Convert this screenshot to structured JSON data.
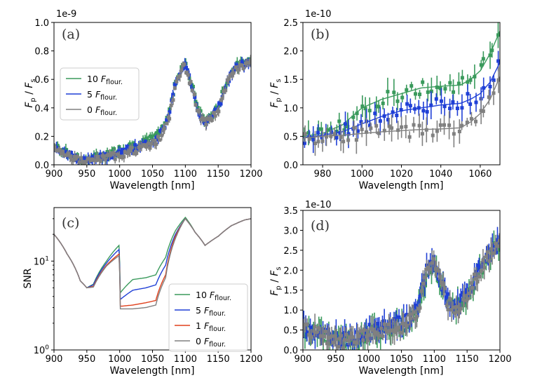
{
  "chart_data": [
    {
      "panel": "(a)",
      "type": "scatter",
      "xlabel": "Wavelength [nm]",
      "ylabel": "F_p / F_s",
      "y_multiplier": "1e-9",
      "xlim": [
        900,
        1200
      ],
      "ylim": [
        0,
        1.0
      ],
      "xticks": [
        "900",
        "950",
        "1000",
        "1050",
        "1100",
        "1150",
        "1200"
      ],
      "yticks": [
        "0.0",
        "0.2",
        "0.4",
        "0.6",
        "0.8",
        "1.0"
      ],
      "legend_position": "center-left",
      "series": [
        {
          "name": "10 F_flour.",
          "color": "#3a9a5c",
          "x": [
            900,
            920,
            940,
            950,
            960,
            980,
            1000,
            1020,
            1040,
            1060,
            1075,
            1085,
            1095,
            1100,
            1110,
            1120,
            1130,
            1140,
            1150,
            1160,
            1170,
            1180,
            1190,
            1200
          ],
          "y": [
            0.13,
            0.08,
            0.04,
            0.03,
            0.05,
            0.07,
            0.11,
            0.14,
            0.16,
            0.22,
            0.36,
            0.58,
            0.7,
            0.71,
            0.56,
            0.38,
            0.31,
            0.35,
            0.4,
            0.55,
            0.65,
            0.7,
            0.72,
            0.74
          ]
        },
        {
          "name": "5 F_flour.",
          "color": "#1f3fd6",
          "x": [
            900,
            920,
            940,
            950,
            960,
            980,
            1000,
            1020,
            1040,
            1060,
            1075,
            1085,
            1095,
            1100,
            1110,
            1120,
            1130,
            1140,
            1150,
            1160,
            1170,
            1180,
            1190,
            1200
          ],
          "y": [
            0.13,
            0.08,
            0.04,
            0.03,
            0.04,
            0.06,
            0.09,
            0.12,
            0.14,
            0.2,
            0.34,
            0.56,
            0.69,
            0.7,
            0.55,
            0.37,
            0.3,
            0.34,
            0.39,
            0.54,
            0.64,
            0.69,
            0.71,
            0.73
          ]
        },
        {
          "name": "0 F_flour.",
          "color": "#808080",
          "x": [
            900,
            920,
            940,
            950,
            960,
            980,
            1000,
            1020,
            1040,
            1060,
            1075,
            1085,
            1095,
            1100,
            1110,
            1120,
            1130,
            1140,
            1150,
            1160,
            1170,
            1180,
            1190,
            1200
          ],
          "y": [
            0.12,
            0.07,
            0.03,
            0.02,
            0.03,
            0.05,
            0.07,
            0.1,
            0.12,
            0.18,
            0.32,
            0.55,
            0.68,
            0.69,
            0.54,
            0.36,
            0.29,
            0.33,
            0.38,
            0.53,
            0.63,
            0.68,
            0.7,
            0.72
          ]
        }
      ]
    },
    {
      "panel": "(b)",
      "type": "scatter",
      "xlabel": "Wavelength [nm]",
      "ylabel": "F_p / F_s",
      "y_multiplier": "1e-10",
      "xlim": [
        970,
        1070
      ],
      "ylim": [
        0,
        2.5
      ],
      "xticks": [
        "980",
        "1000",
        "1020",
        "1040",
        "1060"
      ],
      "yticks": [
        "0.0",
        "0.5",
        "1.0",
        "1.5",
        "2.0",
        "2.5"
      ],
      "series": [
        {
          "name": "10 F_flour.",
          "color": "#3a9a5c",
          "x": [
            970,
            980,
            990,
            1000,
            1010,
            1020,
            1030,
            1040,
            1050,
            1055,
            1060,
            1065,
            1070
          ],
          "y": [
            0.5,
            0.55,
            0.7,
            1.0,
            1.15,
            1.25,
            1.35,
            1.38,
            1.4,
            1.5,
            1.65,
            1.95,
            2.35
          ]
        },
        {
          "name": "5 F_flour.",
          "color": "#1f3fd6",
          "x": [
            970,
            980,
            990,
            1000,
            1010,
            1020,
            1030,
            1040,
            1050,
            1055,
            1060,
            1065,
            1070
          ],
          "y": [
            0.48,
            0.52,
            0.58,
            0.72,
            0.85,
            0.95,
            1.0,
            1.05,
            1.08,
            1.15,
            1.25,
            1.45,
            1.8
          ]
        },
        {
          "name": "0 F_flour.",
          "color": "#808080",
          "x": [
            970,
            980,
            990,
            1000,
            1010,
            1020,
            1030,
            1040,
            1050,
            1055,
            1060,
            1065,
            1070
          ],
          "y": [
            0.47,
            0.5,
            0.52,
            0.55,
            0.58,
            0.6,
            0.62,
            0.63,
            0.65,
            0.75,
            0.9,
            1.15,
            1.55
          ]
        }
      ]
    },
    {
      "panel": "(c)",
      "type": "line",
      "xlabel": "Wavelength [nm]",
      "ylabel": "SNR",
      "yscale": "log",
      "xlim": [
        900,
        1200
      ],
      "ylim": [
        1,
        40
      ],
      "xticks": [
        "900",
        "950",
        "1000",
        "1050",
        "1100",
        "1150",
        "1200"
      ],
      "yticks": [
        "10^0",
        "10^1"
      ],
      "legend_position": "lower-right",
      "series": [
        {
          "name": "10 F_flour.",
          "color": "#3a9a5c",
          "x": [
            900,
            920,
            940,
            950,
            960,
            980,
            999,
            1001,
            1020,
            1040,
            1055,
            1070,
            1085,
            1100,
            1115,
            1130,
            1150,
            1170,
            1190,
            1200
          ],
          "y": [
            20,
            12,
            6,
            5,
            5.5,
            10,
            15,
            4.4,
            6.2,
            6.5,
            7,
            11,
            22,
            31,
            21,
            15,
            19,
            25,
            29,
            30
          ]
        },
        {
          "name": "5 F_flour.",
          "color": "#1f3fd6",
          "x": [
            900,
            920,
            940,
            950,
            960,
            980,
            999,
            1001,
            1020,
            1040,
            1055,
            1070,
            1085,
            1100,
            1115,
            1130,
            1150,
            1170,
            1190,
            1200
          ],
          "y": [
            20,
            12,
            6,
            5,
            5.4,
            9.5,
            13.5,
            3.7,
            4.7,
            5,
            5.4,
            9,
            20,
            30,
            21,
            15,
            19,
            25,
            29,
            30
          ]
        },
        {
          "name": "1 F_flour.",
          "color": "#e0401c",
          "x": [
            900,
            920,
            940,
            950,
            960,
            980,
            999,
            1001,
            1020,
            1040,
            1055,
            1070,
            1085,
            1100,
            1115,
            1130,
            1150,
            1170,
            1190,
            1200
          ],
          "y": [
            20,
            12,
            6,
            5,
            5.2,
            9,
            12,
            3.1,
            3.2,
            3.4,
            3.6,
            7,
            19,
            30,
            21,
            15,
            19,
            25,
            29,
            30
          ]
        },
        {
          "name": "0 F_flour.",
          "color": "#808080",
          "x": [
            900,
            920,
            940,
            950,
            960,
            980,
            999,
            1001,
            1020,
            1040,
            1055,
            1070,
            1085,
            1100,
            1115,
            1130,
            1150,
            1170,
            1190,
            1200
          ],
          "y": [
            20,
            12,
            6,
            5,
            5.1,
            8.8,
            11.5,
            2.9,
            2.9,
            3.0,
            3.2,
            6.5,
            18,
            30,
            21,
            15,
            19,
            25,
            29,
            30
          ]
        }
      ]
    },
    {
      "panel": "(d)",
      "type": "scatter",
      "xlabel": "Wavelength [nm]",
      "ylabel": "F_p / F_s",
      "y_multiplier": "1e-10",
      "xlim": [
        900,
        1200
      ],
      "ylim": [
        0,
        3.5
      ],
      "xticks": [
        "900",
        "950",
        "1000",
        "1050",
        "1100",
        "1150",
        "1200"
      ],
      "yticks": [
        "0.0",
        "0.5",
        "1.0",
        "1.5",
        "2.0",
        "2.5",
        "3.0",
        "3.5"
      ],
      "series": [
        {
          "name": "10 F_flour.",
          "color": "#3a9a5c",
          "x": [
            900,
            920,
            940,
            960,
            980,
            1000,
            1020,
            1040,
            1060,
            1075,
            1090,
            1100,
            1110,
            1120,
            1130,
            1140,
            1150,
            1160,
            1170,
            1180,
            1190,
            1200
          ],
          "y": [
            0.5,
            0.45,
            0.3,
            0.25,
            0.3,
            0.4,
            0.5,
            0.55,
            0.7,
            1.0,
            2.0,
            2.2,
            1.7,
            1.2,
            1.0,
            1.2,
            1.4,
            1.7,
            2.0,
            2.3,
            2.5,
            2.6
          ]
        },
        {
          "name": "5 F_flour.",
          "color": "#1f3fd6",
          "x": [
            900,
            920,
            940,
            960,
            980,
            1000,
            1020,
            1040,
            1060,
            1075,
            1090,
            1100,
            1110,
            1120,
            1130,
            1140,
            1150,
            1160,
            1170,
            1180,
            1190,
            1200
          ],
          "y": [
            0.55,
            0.4,
            0.3,
            0.25,
            0.3,
            0.45,
            0.55,
            0.6,
            0.75,
            1.1,
            2.1,
            2.25,
            1.75,
            1.25,
            1.0,
            1.2,
            1.45,
            1.75,
            2.05,
            2.35,
            2.55,
            2.65
          ]
        },
        {
          "name": "0 F_flour.",
          "color": "#808080",
          "x": [
            900,
            920,
            940,
            960,
            980,
            1000,
            1020,
            1040,
            1060,
            1075,
            1090,
            1100,
            1110,
            1120,
            1130,
            1140,
            1150,
            1160,
            1170,
            1180,
            1190,
            1200
          ],
          "y": [
            0.5,
            0.42,
            0.28,
            0.22,
            0.28,
            0.4,
            0.5,
            0.55,
            0.7,
            1.0,
            2.0,
            2.15,
            1.7,
            1.2,
            0.95,
            1.15,
            1.4,
            1.7,
            2.0,
            2.3,
            2.5,
            2.6
          ]
        }
      ]
    }
  ],
  "text": {
    "a": {
      "label": "(a)",
      "multiplier": "1e-9",
      "xlabel": "Wavelength [nm]"
    },
    "b": {
      "label": "(b)",
      "multiplier": "1e-10",
      "xlabel": "Wavelength [nm]"
    },
    "c": {
      "label": "(c)",
      "ylabel": "SNR",
      "xlabel": "Wavelength [nm]"
    },
    "d": {
      "label": "(d)",
      "multiplier": "1e-10",
      "xlabel": "Wavelength [nm]"
    },
    "ylabel_main": "F",
    "ylabel_p": "p",
    "ylabel_slash": " / ",
    "ylabel_s": "s",
    "legend_a": [
      {
        "num": "10",
        "f": "F",
        "sub": "flour."
      },
      {
        "num": "5",
        "f": "F",
        "sub": "flour."
      },
      {
        "num": "0",
        "f": "F",
        "sub": "flour."
      }
    ],
    "legend_c": [
      {
        "num": "10",
        "f": "F",
        "sub": "flour."
      },
      {
        "num": "5",
        "f": "F",
        "sub": "flour."
      },
      {
        "num": "1",
        "f": "F",
        "sub": "flour."
      },
      {
        "num": "0",
        "f": "F",
        "sub": "flour."
      }
    ],
    "log_ticks": [
      {
        "base": "10",
        "exp": "0"
      },
      {
        "base": "10",
        "exp": "1"
      }
    ]
  },
  "colors": {
    "green": "#3a9a5c",
    "blue": "#1f3fd6",
    "red": "#e0401c",
    "gray": "#808080"
  }
}
